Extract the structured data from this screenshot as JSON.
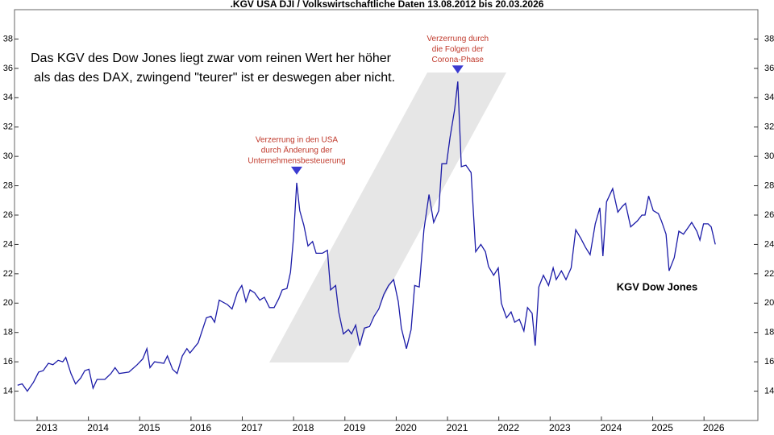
{
  "chart_data": {
    "type": "line",
    "title": ".KGV USA DJI / Volkswirtschaftliche Daten 13.08.2012 bis 20.03.2026",
    "note": [
      "Das KGV des Dow Jones liegt zwar vom reinen Wert her höher",
      "als das des DAX, zwingend \"teurer\" ist er deswegen aber nicht."
    ],
    "annotations": [
      {
        "lines": [
          "Verzerrung in den USA",
          "durch Änderung der",
          "Unternehmensbesteuerung"
        ],
        "x": 2018.06
      },
      {
        "lines": [
          "Verzerrung durch",
          "die Folgen der",
          "Corona-Phase"
        ],
        "x": 2021.2
      }
    ],
    "xlim": [
      2012.56,
      2027.05
    ],
    "xticks": [
      2013,
      2014,
      2015,
      2016,
      2017,
      2018,
      2019,
      2020,
      2021,
      2022,
      2023,
      2024,
      2025,
      2026
    ],
    "ylim": [
      12,
      40
    ],
    "yticks": [
      14,
      16,
      18,
      20,
      22,
      24,
      26,
      28,
      30,
      32,
      34,
      36,
      38
    ],
    "x": [
      2012.62,
      2012.71,
      2012.81,
      2012.93,
      2013.03,
      2013.12,
      2013.22,
      2013.31,
      2013.41,
      2013.5,
      2013.56,
      2013.66,
      2013.75,
      2013.85,
      2013.93,
      2014.01,
      2014.09,
      2014.17,
      2014.32,
      2014.44,
      2014.52,
      2014.6,
      2014.79,
      2014.95,
      2015.06,
      2015.14,
      2015.2,
      2015.29,
      2015.47,
      2015.54,
      2015.64,
      2015.73,
      2015.83,
      2015.92,
      2015.98,
      2016.14,
      2016.3,
      2016.39,
      2016.46,
      2016.55,
      2016.71,
      2016.8,
      2016.9,
      2016.99,
      2017.07,
      2017.15,
      2017.24,
      2017.34,
      2017.43,
      2017.53,
      2017.62,
      2017.71,
      2017.78,
      2017.87,
      2017.94,
      2018.0,
      2018.06,
      2018.12,
      2018.2,
      2018.28,
      2018.37,
      2018.44,
      2018.56,
      2018.66,
      2018.72,
      2018.82,
      2018.88,
      2018.97,
      2019.07,
      2019.13,
      2019.21,
      2019.29,
      2019.38,
      2019.48,
      2019.57,
      2019.66,
      2019.76,
      2019.85,
      2019.95,
      2020.04,
      2020.1,
      2020.2,
      2020.29,
      2020.36,
      2020.45,
      2020.54,
      2020.64,
      2020.73,
      2020.83,
      2020.89,
      2020.98,
      2021.05,
      2021.14,
      2021.2,
      2021.27,
      2021.36,
      2021.46,
      2021.55,
      2021.65,
      2021.74,
      2021.8,
      2021.9,
      2021.99,
      2022.05,
      2022.15,
      2022.24,
      2022.31,
      2022.4,
      2022.49,
      2022.56,
      2022.65,
      2022.71,
      2022.78,
      2022.87,
      2022.97,
      2023.06,
      2023.12,
      2023.22,
      2023.31,
      2023.41,
      2023.5,
      2023.6,
      2023.69,
      2023.78,
      2023.88,
      2023.97,
      2024.03,
      2024.1,
      2024.22,
      2024.32,
      2024.41,
      2024.47,
      2024.57,
      2024.7,
      2024.79,
      2024.85,
      2024.92,
      2025.01,
      2025.11,
      2025.17,
      2025.26,
      2025.32,
      2025.42,
      2025.51,
      2025.6,
      2025.7,
      2025.76,
      2025.86,
      2025.92,
      2025.99,
      2026.08,
      2026.14,
      2026.22
    ],
    "series": [
      {
        "name": "KGV Dow Jones",
        "color": "#1c1ca8",
        "values": [
          14.4,
          14.5,
          14.0,
          14.6,
          15.3,
          15.4,
          15.9,
          15.8,
          16.1,
          16.0,
          16.3,
          15.2,
          14.5,
          14.9,
          15.4,
          15.5,
          14.2,
          14.8,
          14.8,
          15.2,
          15.6,
          15.2,
          15.3,
          15.8,
          16.2,
          16.9,
          15.6,
          16.0,
          15.9,
          16.4,
          15.5,
          15.2,
          16.4,
          16.9,
          16.6,
          17.3,
          19.0,
          19.1,
          18.7,
          20.2,
          19.9,
          19.6,
          20.7,
          21.2,
          20.1,
          20.9,
          20.7,
          20.2,
          20.4,
          19.7,
          19.7,
          20.3,
          20.9,
          21.0,
          22.1,
          24.5,
          28.2,
          26.3,
          25.3,
          23.9,
          24.2,
          23.4,
          23.4,
          23.6,
          20.9,
          21.2,
          19.4,
          17.9,
          18.2,
          17.9,
          18.5,
          17.1,
          18.3,
          18.4,
          19.1,
          19.6,
          20.6,
          21.2,
          21.6,
          20.1,
          18.3,
          16.9,
          18.2,
          21.2,
          21.1,
          25.0,
          27.4,
          25.5,
          26.3,
          29.5,
          29.5,
          31.3,
          33.2,
          35.1,
          29.3,
          29.4,
          28.9,
          23.5,
          24.0,
          23.5,
          22.5,
          21.9,
          22.4,
          20.0,
          19.0,
          19.4,
          18.7,
          18.9,
          18.1,
          19.7,
          19.3,
          17.1,
          21.1,
          21.9,
          21.2,
          22.4,
          21.6,
          22.2,
          21.6,
          22.4,
          25.0,
          24.4,
          23.8,
          23.3,
          25.4,
          26.5,
          23.2,
          26.9,
          27.8,
          26.2,
          26.6,
          26.8,
          25.2,
          25.6,
          26.0,
          26.0,
          27.3,
          26.3,
          26.1,
          25.6,
          24.7,
          22.2,
          23.1,
          24.9,
          24.7,
          25.2,
          25.5,
          24.9,
          24.3,
          25.4,
          25.4,
          25.2,
          24.0
        ]
      }
    ]
  }
}
